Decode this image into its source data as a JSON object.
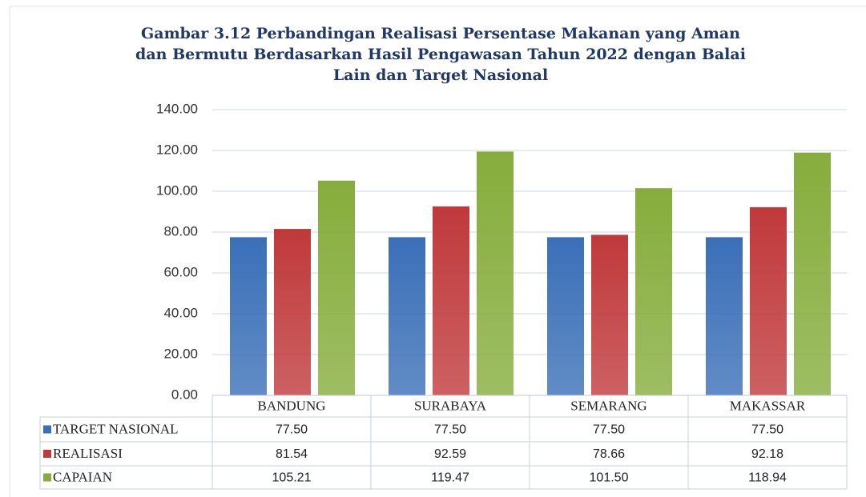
{
  "chart_data": {
    "type": "bar",
    "title": [
      "Gambar 3.12 Perbandingan Realisasi Persentase Makanan yang Aman",
      "dan Bermutu Berdasarkan Hasil Pengawasan Tahun 2022 dengan Balai",
      "Lain dan Target Nasional"
    ],
    "categories": [
      "BANDUNG",
      "SURABAYA",
      "SEMARANG",
      "MAKASSAR"
    ],
    "series": [
      {
        "name": "TARGET NASIONAL",
        "color": "#3a6fb8",
        "values": [
          77.5,
          77.5,
          77.5,
          77.5
        ],
        "value_labels": [
          "77.50",
          "77.50",
          "77.50",
          "77.50"
        ]
      },
      {
        "name": "REALISASI",
        "color": "#c0393b",
        "values": [
          81.54,
          92.59,
          78.66,
          92.18
        ],
        "value_labels": [
          "81.54",
          "92.59",
          "78.66",
          "92.18"
        ]
      },
      {
        "name": "CAPAIAN",
        "color": "#86ad3c",
        "values": [
          105.21,
          119.47,
          101.5,
          118.94
        ],
        "value_labels": [
          "105.21",
          "119.47",
          "101.50",
          "118.94"
        ]
      }
    ],
    "ylim": [
      0,
      140
    ],
    "yticks": [
      {
        "value": 0,
        "label": "0.00"
      },
      {
        "value": 20,
        "label": "20.00"
      },
      {
        "value": 40,
        "label": "40.00"
      },
      {
        "value": 60,
        "label": "60.00"
      },
      {
        "value": 80,
        "label": "80.00"
      },
      {
        "value": 100,
        "label": "100.00"
      },
      {
        "value": 120,
        "label": "120.00"
      },
      {
        "value": 140,
        "label": "140.00"
      }
    ],
    "grid": true
  }
}
